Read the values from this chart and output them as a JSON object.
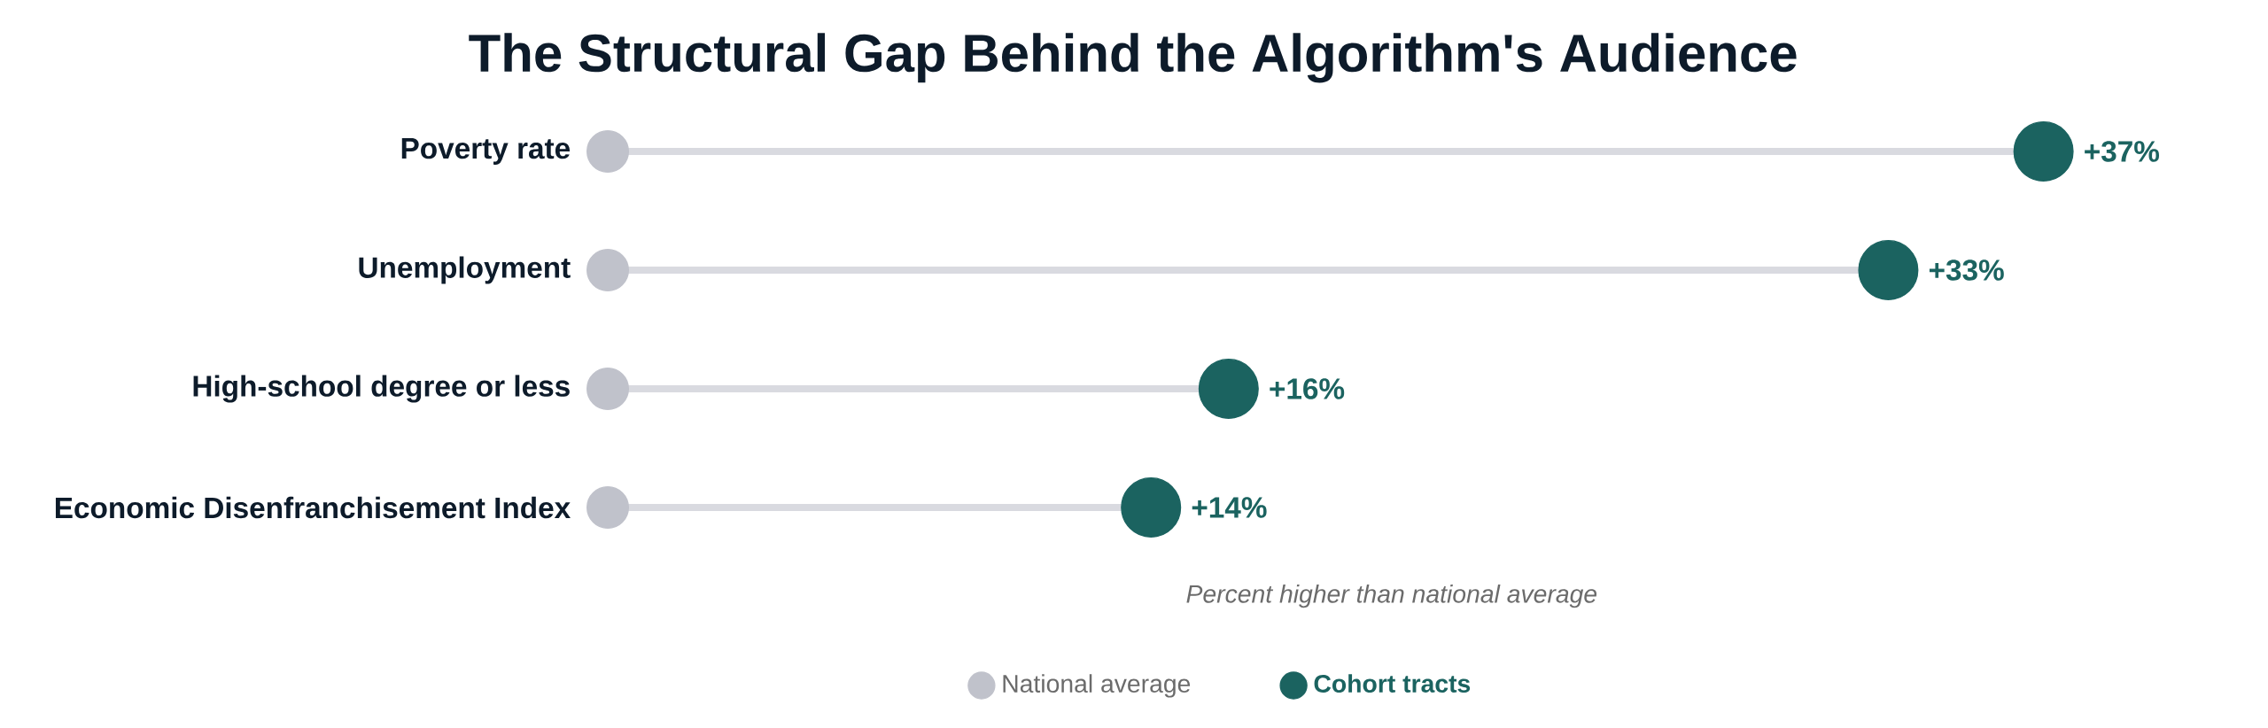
{
  "chart_data": {
    "type": "lollipop",
    "title": "The Structural Gap Behind the Algorithm's Audience",
    "xlabel": "Percent higher than national average",
    "orientation": "horizontal",
    "legend": "bottom",
    "categories": [
      "Poverty rate",
      "Unemployment",
      "High-school degree or less",
      "Economic Disenfranchisement Index"
    ],
    "series": [
      {
        "name": "National average",
        "type": "scatter",
        "color": "#c0c2cb",
        "values": [
          0,
          0,
          0,
          0
        ]
      },
      {
        "name": "Cohort tracts",
        "color": "#1b6360",
        "values": [
          37,
          33,
          16,
          14
        ],
        "value_labels": [
          "+37%",
          "+33%",
          "+16%",
          "+14%"
        ]
      }
    ]
  }
}
